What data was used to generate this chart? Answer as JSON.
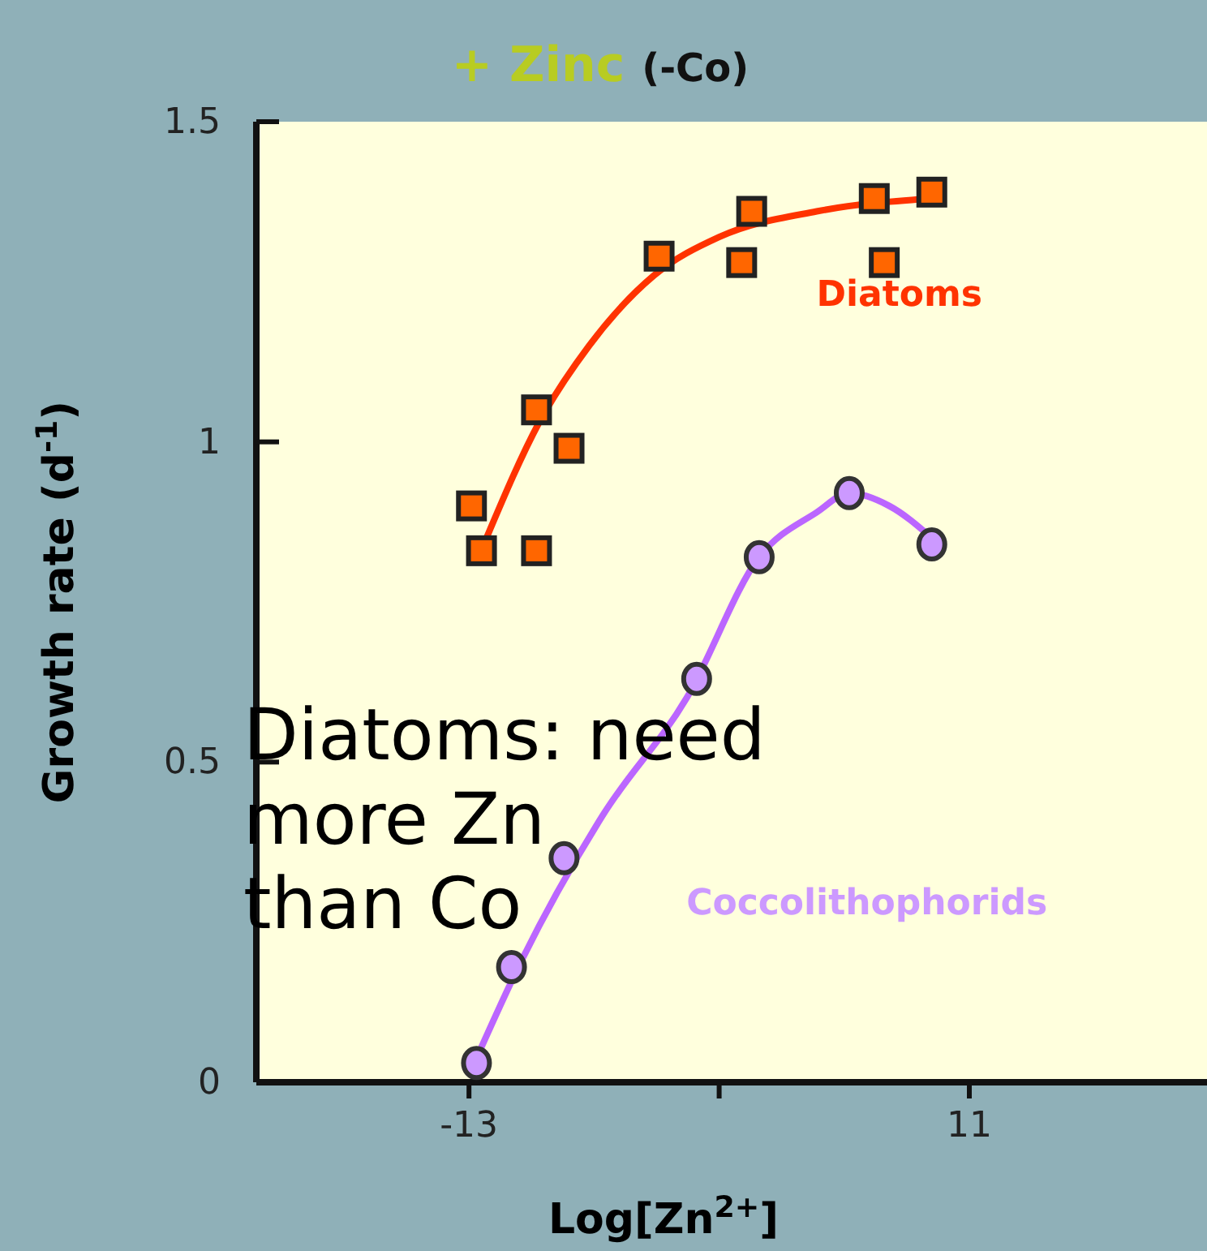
{
  "chart_data": {
    "type": "scatter",
    "title": "+ Zinc (-Co)",
    "xlabel": "Log[Zn$^{2+}$]",
    "ylabel": "Growth rate (d$^{-1}$)",
    "xlim": [
      -13.85,
      -10.05
    ],
    "xticks": [
      -13,
      {
        "value": -12,
        "label": null
      },
      {
        "value": -11,
        "label": "11"
      }
    ],
    "ylim": [
      0,
      1.5
    ],
    "yticks": [
      0,
      0.5,
      1,
      1.5
    ],
    "grid": false,
    "legend": false,
    "annotations": [
      "Diatoms: need more Zn than Co"
    ],
    "series": [
      {
        "name": "Diatoms",
        "marker": "square",
        "color": "#ff6600",
        "x": [
          -12.99,
          -12.95,
          -12.73,
          -12.73,
          -12.6,
          -12.24,
          -11.91,
          -11.87,
          -11.38,
          -11.34,
          -11.15
        ],
        "values": [
          0.9,
          0.83,
          1.05,
          0.83,
          0.99,
          1.29,
          1.28,
          1.36,
          1.38,
          1.28,
          1.39
        ]
      },
      {
        "type": "line",
        "marker": "none",
        "color": "#ff3300",
        "x": [
          -12.93,
          -12.72,
          -12.52,
          -12.26,
          -12.0,
          -11.61,
          -11.16
        ],
        "values": [
          0.85,
          1.03,
          1.15,
          1.26,
          1.32,
          1.36,
          1.38
        ]
      },
      {
        "name": "Coccolithophorids",
        "marker": "circle",
        "color": "#cc99ff",
        "x": [
          -12.97,
          -12.83,
          -12.62,
          -12.09,
          -11.84,
          -11.48,
          -11.15
        ],
        "values": [
          0.03,
          0.18,
          0.35,
          0.63,
          0.82,
          0.92,
          0.84
        ]
      },
      {
        "type": "line",
        "marker": "none",
        "color": "#bb66ff",
        "x": [
          -12.99,
          -12.79,
          -12.46,
          -12.13,
          -11.84,
          -11.61,
          -11.48,
          -11.32,
          -11.15
        ],
        "values": [
          0.02,
          0.19,
          0.42,
          0.6,
          0.82,
          0.89,
          0.92,
          0.9,
          0.85
        ]
      }
    ]
  }
}
